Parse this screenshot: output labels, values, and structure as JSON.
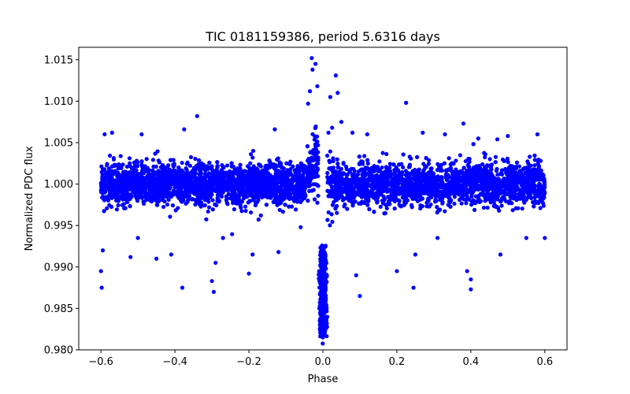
{
  "chart_data": {
    "type": "scatter",
    "title": "TIC 0181159386, period 5.6316 days",
    "xlabel": "Phase",
    "ylabel": "Normalized PDC flux",
    "xlim": [
      -0.66,
      0.66
    ],
    "ylim": [
      0.98,
      1.0165
    ],
    "xticks": [
      -0.6,
      -0.4,
      -0.2,
      0.0,
      0.2,
      0.4,
      0.6
    ],
    "xtick_labels": [
      "−0.6",
      "−0.4",
      "−0.2",
      "0.0",
      "0.2",
      "0.4",
      "0.6"
    ],
    "yticks": [
      0.98,
      0.985,
      0.99,
      0.995,
      1.0,
      1.005,
      1.01,
      1.015
    ],
    "ytick_labels": [
      "0.980",
      "0.985",
      "0.990",
      "0.995",
      "1.000",
      "1.005",
      "1.010",
      "1.015"
    ],
    "grid": false,
    "legend": "none",
    "series": [
      {
        "color": "#0000ff",
        "marker": "circle",
        "x_range": [
          -0.6,
          0.6
        ],
        "baseline_flux": 1.0,
        "scatter_band": [
          0.997,
          1.003
        ],
        "transit_center_phase": 0.0,
        "transit_min_flux": 0.9815,
        "pre_transit_peak_flux": 1.0152,
        "points": [
          [
            -0.6,
            0.9895
          ],
          [
            -0.598,
            0.9875
          ],
          [
            -0.595,
            0.992
          ],
          [
            -0.59,
            1.006
          ],
          [
            -0.57,
            1.0062
          ],
          [
            -0.52,
            0.9912
          ],
          [
            -0.5,
            0.9935
          ],
          [
            -0.49,
            1.006
          ],
          [
            -0.45,
            0.991
          ],
          [
            -0.41,
            0.9915
          ],
          [
            -0.38,
            0.9875
          ],
          [
            -0.375,
            1.0066
          ],
          [
            -0.34,
            1.0082
          ],
          [
            -0.3,
            0.9883
          ],
          [
            -0.295,
            0.987
          ],
          [
            -0.29,
            0.9905
          ],
          [
            -0.27,
            0.9935
          ],
          [
            -0.2,
            0.9892
          ],
          [
            -0.19,
            0.9915
          ],
          [
            -0.13,
            1.0066
          ],
          [
            -0.12,
            0.9918
          ],
          [
            -0.06,
            0.9948
          ],
          [
            -0.04,
            1.0097
          ],
          [
            -0.035,
            1.0112
          ],
          [
            -0.03,
            1.0152
          ],
          [
            -0.028,
            1.0138
          ],
          [
            -0.02,
            1.0145
          ],
          [
            -0.015,
            1.0118
          ],
          [
            -0.01,
            0.9895
          ],
          [
            -0.005,
            0.9845
          ],
          [
            0.0,
            0.9815
          ],
          [
            0.002,
            0.983
          ],
          [
            0.008,
            0.9862
          ],
          [
            0.015,
            1.0062
          ],
          [
            0.02,
            1.0105
          ],
          [
            0.025,
            1.0068
          ],
          [
            0.035,
            1.0131
          ],
          [
            0.04,
            1.011
          ],
          [
            0.05,
            1.0075
          ],
          [
            0.08,
            1.0062
          ],
          [
            0.09,
            0.989
          ],
          [
            0.1,
            0.9865
          ],
          [
            0.12,
            1.006
          ],
          [
            0.2,
            0.9895
          ],
          [
            0.225,
            1.0098
          ],
          [
            0.245,
            0.9875
          ],
          [
            0.25,
            0.9915
          ],
          [
            0.27,
            1.0062
          ],
          [
            0.31,
            0.9935
          ],
          [
            0.33,
            1.006
          ],
          [
            0.38,
            1.0073
          ],
          [
            0.39,
            0.9895
          ],
          [
            0.4,
            0.9885
          ],
          [
            0.4,
            0.9873
          ],
          [
            0.42,
            1.0055
          ],
          [
            0.48,
            0.9915
          ],
          [
            0.5,
            1.0058
          ],
          [
            0.55,
            0.9935
          ],
          [
            0.58,
            1.006
          ],
          [
            0.6,
            0.9935
          ]
        ]
      }
    ]
  }
}
